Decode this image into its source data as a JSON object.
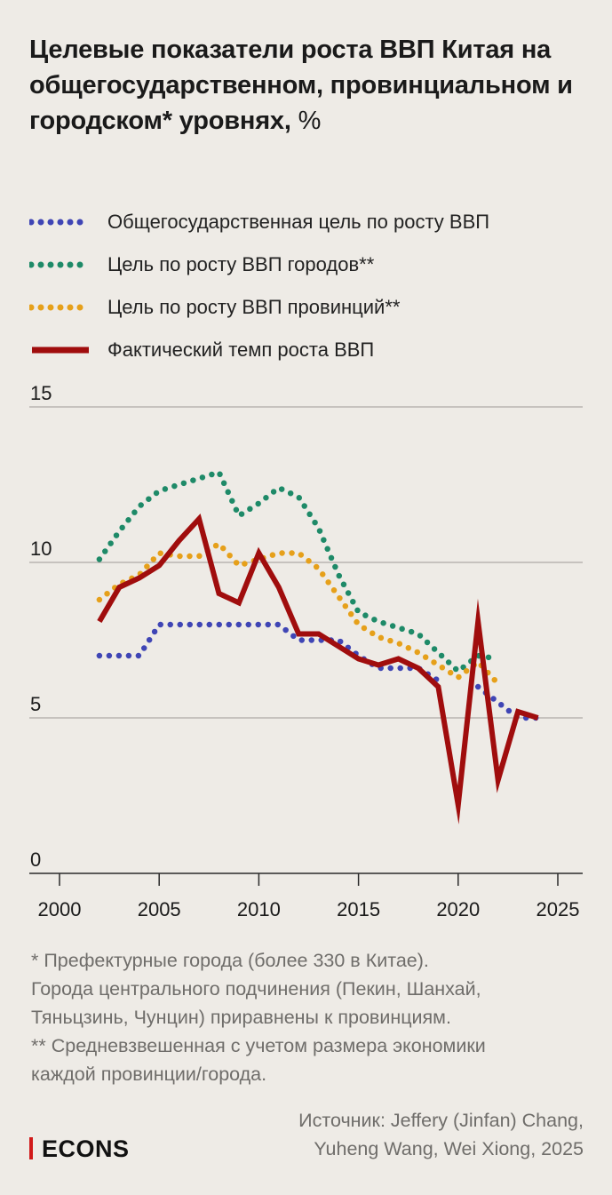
{
  "title": "Целевые показатели роста ВВП Китая на общегосударственном, провинциальном и городском* уровнях,",
  "title_unit": "%",
  "legend": [
    {
      "label": "Общегосударственная цель по росту ВВП",
      "style": "dotted",
      "color": "#3f45b5"
    },
    {
      "label": "Цель по росту ВВП городов**",
      "style": "dotted",
      "color": "#1e8a68"
    },
    {
      "label": "Цель по росту ВВП провинций**",
      "style": "dotted",
      "color": "#e6a01a"
    },
    {
      "label": "Фактический темп роста ВВП",
      "style": "solid",
      "color": "#a00d0d"
    }
  ],
  "chart_data": {
    "type": "line",
    "title": "",
    "xlabel": "",
    "ylabel": "",
    "xlim": [
      1999,
      2026
    ],
    "ylim": [
      0,
      15
    ],
    "grid": "horizontal",
    "x_ticks": [
      "2000",
      "2005",
      "2010",
      "2015",
      "2020",
      "2025"
    ],
    "y_ticks": [
      "0",
      "5",
      "10",
      "15"
    ],
    "x": [
      2002,
      2003,
      2004,
      2005,
      2006,
      2007,
      2008,
      2009,
      2010,
      2011,
      2012,
      2013,
      2014,
      2015,
      2016,
      2017,
      2018,
      2019,
      2020,
      2021,
      2022,
      2023,
      2024
    ],
    "series": [
      {
        "name": "Общегосударственная цель по росту ВВП",
        "color": "#3f45b5",
        "style": "dotted",
        "values": [
          7,
          7,
          7,
          8,
          8,
          8,
          8,
          8,
          8,
          8,
          7.5,
          7.5,
          7.5,
          7,
          6.6,
          6.6,
          6.6,
          6.2,
          null,
          6,
          5.5,
          5,
          5
        ]
      },
      {
        "name": "Цель по росту ВВП городов**",
        "color": "#1e8a68",
        "style": "dotted",
        "values": [
          10.1,
          11,
          11.8,
          12.3,
          12.5,
          12.7,
          12.9,
          11.5,
          11.9,
          12.4,
          12.1,
          11.1,
          9.6,
          8.4,
          8.1,
          7.9,
          7.7,
          7.1,
          6.5,
          7,
          6.9,
          null,
          null
        ]
      },
      {
        "name": "Цель по росту ВВП провинций**",
        "color": "#e6a01a",
        "style": "dotted",
        "values": [
          8.8,
          9.3,
          9.6,
          10.3,
          10.2,
          10.2,
          10.6,
          9.9,
          10.1,
          10.3,
          10.3,
          9.8,
          8.9,
          8,
          7.6,
          7.4,
          7.1,
          6.7,
          6.3,
          6.8,
          6.1,
          null,
          null
        ]
      },
      {
        "name": "Фактический темп роста ВВП",
        "color": "#a00d0d",
        "style": "solid",
        "values": [
          8.1,
          9.2,
          9.5,
          9.9,
          10.7,
          11.4,
          9,
          8.7,
          10.3,
          9.2,
          7.7,
          7.7,
          7.3,
          6.9,
          6.7,
          6.9,
          6.6,
          6,
          2.2,
          8.1,
          3,
          5.2,
          5
        ]
      }
    ]
  },
  "notes": [
    "* Префектурные города (более 330 в Китае).",
    "Города центрального подчинения (Пекин, Шанхай,",
    "Тяньцзинь, Чунцин) приравнены к провинциям.",
    "** Средневзвешенная с учетом размера экономики",
    "каждой провинции/города."
  ],
  "source": [
    "Источник: Jeffery (Jinfan) Chang,",
    "Yuheng Wang, Wei Xiong, 2025"
  ],
  "logo": "ECONS"
}
